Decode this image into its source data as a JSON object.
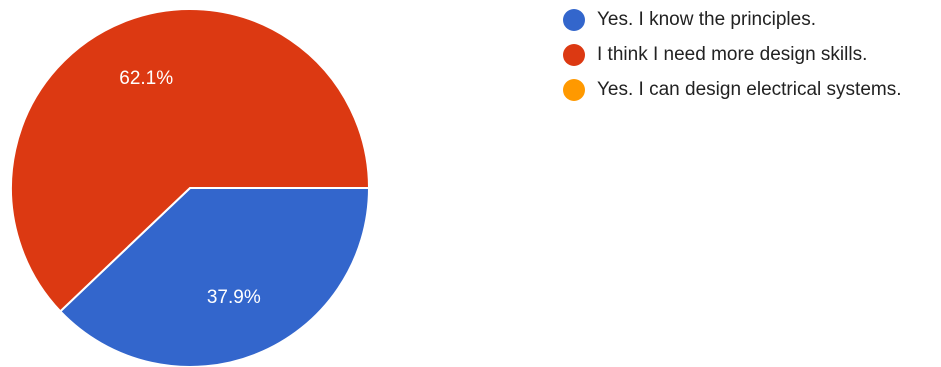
{
  "chart_data": {
    "type": "pie",
    "slices": [
      {
        "label": "Yes. I know the principles.",
        "value": 37.9,
        "display": "37.9%",
        "color": "#3366cc"
      },
      {
        "label": "I think I need more design skills.",
        "value": 62.1,
        "display": "62.1%",
        "color": "#dc3912"
      },
      {
        "label": "Yes. I can design electrical systems.",
        "value": 0,
        "display": "",
        "color": "#ff9900"
      }
    ],
    "legend_position": "right"
  }
}
